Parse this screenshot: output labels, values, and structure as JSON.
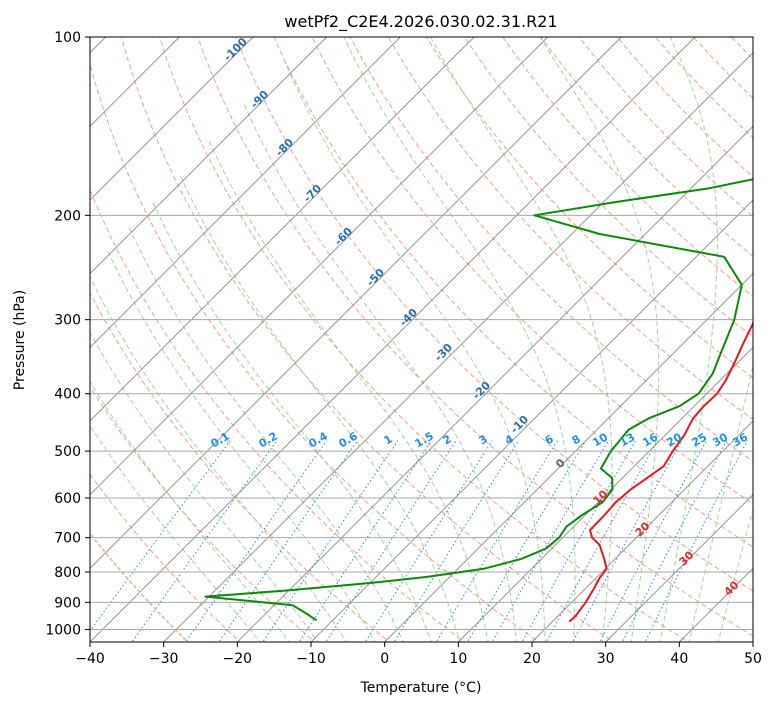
{
  "chart_data": {
    "type": "line",
    "subtype": "skew-T log-P diagram",
    "title": "wetPf2_C2E4.2026.030.02.31.R21",
    "xlabel": "Temperature (°C)",
    "ylabel": "Pressure (hPa)",
    "xlim": [
      -40,
      50
    ],
    "ylim": [
      1050,
      100
    ],
    "x_ticks": [
      -40,
      -30,
      -20,
      -10,
      0,
      10,
      20,
      30,
      40,
      50
    ],
    "y_ticks": [
      1000,
      900,
      800,
      700,
      600,
      500,
      400,
      300,
      200,
      100
    ],
    "grid": true,
    "isotherm_labels": [
      "-100",
      "-90",
      "-80",
      "-70",
      "-60",
      "-50",
      "-40",
      "-30",
      "-20",
      "-10"
    ],
    "mixing_ratio_labels": [
      "0.1",
      "0.2",
      "0.4",
      "0.6",
      "1",
      "1.5",
      "2",
      "3",
      "4",
      "6",
      "8",
      "10",
      "13",
      "16",
      "20",
      "25",
      "30",
      "36"
    ],
    "moist_adiabat_labels": [
      "0",
      "10",
      "20",
      "30",
      "40"
    ],
    "colors": {
      "temperature": "#e8191c",
      "dewpoint": "#0a8a0a",
      "isotherm_label": "#2a6fb0",
      "mixing_ratio": "#1f8fe8",
      "moist_adiabat_label": "#d8302c",
      "dry_adiabat": "#f5a084",
      "moist_adiabat": "#9fd69f",
      "skewed_isotherm": "#8a8a8a",
      "boundary": "#e0c8a8"
    },
    "series": [
      {
        "name": "Temperature",
        "points": [
          [
            22.3,
            970
          ],
          [
            22.4,
            950
          ],
          [
            21.9,
            900
          ],
          [
            21.1,
            850
          ],
          [
            20.5,
            820
          ],
          [
            20.2,
            790
          ],
          [
            18.5,
            760
          ],
          [
            16.0,
            720
          ],
          [
            14.0,
            700
          ],
          [
            12.7,
            680
          ],
          [
            12.6,
            640
          ],
          [
            12.4,
            610
          ],
          [
            12.7,
            580
          ],
          [
            13.5,
            550
          ],
          [
            14.0,
            530
          ],
          [
            13.2,
            500
          ],
          [
            12.6,
            470
          ],
          [
            11.5,
            440
          ],
          [
            11.3,
            420
          ],
          [
            11.4,
            400
          ],
          [
            10.8,
            380
          ],
          [
            9.6,
            355
          ],
          [
            8.2,
            330
          ],
          [
            6.8,
            305
          ],
          [
            4.8,
            280
          ],
          [
            3.1,
            258
          ],
          [
            0.8,
            240
          ],
          [
            3.5,
            225
          ],
          [
            9.8,
            200
          ],
          [
            14.6,
            175
          ],
          [
            16.4,
            160
          ],
          [
            18.2,
            150
          ],
          [
            21.3,
            140
          ],
          [
            25.7,
            130
          ],
          [
            30.3,
            120
          ],
          [
            33.8,
            111
          ],
          [
            36.6,
            105
          ],
          [
            38.2,
            100
          ]
        ]
      },
      {
        "name": "Dewpoint",
        "points": [
          [
            -12.2,
            965
          ],
          [
            -14.5,
            940
          ],
          [
            -17.5,
            910
          ],
          [
            -30.5,
            880
          ],
          [
            -20.5,
            860
          ],
          [
            -10.0,
            835
          ],
          [
            -3.0,
            815
          ],
          [
            3.5,
            790
          ],
          [
            7.3,
            760
          ],
          [
            9.2,
            730
          ],
          [
            9.5,
            700
          ],
          [
            9.0,
            670
          ],
          [
            9.6,
            640
          ],
          [
            10.6,
            610
          ],
          [
            10.2,
            580
          ],
          [
            8.6,
            555
          ],
          [
            5.8,
            535
          ],
          [
            4.8,
            500
          ],
          [
            4.3,
            460
          ],
          [
            5.5,
            440
          ],
          [
            8.0,
            420
          ],
          [
            8.9,
            400
          ],
          [
            8.1,
            370
          ],
          [
            6.0,
            335
          ],
          [
            3.7,
            300
          ],
          [
            0.0,
            262
          ],
          [
            -6.2,
            235
          ],
          [
            -26.2,
            215
          ],
          [
            -37.6,
            200
          ],
          [
            -28.4,
            190
          ],
          [
            -17.5,
            180
          ],
          [
            -5.7,
            165
          ],
          [
            1.8,
            150
          ],
          [
            8.2,
            130
          ],
          [
            15.0,
            115
          ],
          [
            19.3,
            105
          ],
          [
            22.2,
            100
          ]
        ]
      }
    ]
  }
}
